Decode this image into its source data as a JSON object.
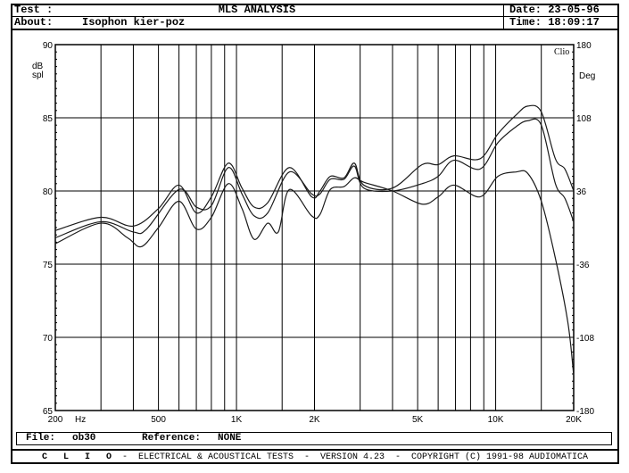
{
  "header": {
    "test_label": "Test :",
    "title": "MLS ANALYSIS",
    "about_label": "About:",
    "about_value": "Isophon kier-poz",
    "date_label": "Date:",
    "date_value": "23-05-96",
    "time_label": "Time:",
    "time_value": "18:09:17"
  },
  "file_bar": {
    "file_label": "File:",
    "file_value": "ob30",
    "reference_label": "Reference:",
    "reference_value": "NONE"
  },
  "footer": {
    "brand": "C L I O",
    "text": " -  ELECTRICAL & ACOUSTICAL TESTS  -  VERSION 4.23  -  COPYRIGHT (C) 1991-98 AUDIOMATICA"
  },
  "chart_data": {
    "type": "line",
    "title": "MLS ANALYSIS",
    "xlabel": "Hz",
    "ylabel": "dB spl",
    "y2label": "Deg",
    "badge": "Clio",
    "xscale": "log",
    "xlim": [
      200,
      20000
    ],
    "ylim": [
      65,
      90
    ],
    "y2lim": [
      -180,
      180
    ],
    "grid": true,
    "x_grid": [
      300,
      400,
      500,
      600,
      700,
      800,
      900,
      1000,
      1500,
      2000,
      3000,
      4000,
      5000,
      6000,
      7000,
      8000,
      9000,
      10000,
      15000
    ],
    "x_ticks": [
      {
        "v": 200,
        "label": "200"
      },
      {
        "v": 500,
        "label": "500"
      },
      {
        "v": 1000,
        "label": "1K"
      },
      {
        "v": 2000,
        "label": "2K"
      },
      {
        "v": 5000,
        "label": "5K"
      },
      {
        "v": 10000,
        "label": "10K"
      },
      {
        "v": 20000,
        "label": "20K"
      }
    ],
    "y_ticks": [
      "90",
      "85",
      "80",
      "75",
      "70",
      "65"
    ],
    "y2_ticks": [
      "180",
      "108",
      "36",
      "-36",
      "-108",
      "-180"
    ],
    "series": [
      {
        "name": "curve-1",
        "points": [
          [
            200,
            77.3
          ],
          [
            300,
            78.2
          ],
          [
            400,
            77.6
          ],
          [
            500,
            78.8
          ],
          [
            600,
            80.4
          ],
          [
            700,
            78.5
          ],
          [
            800,
            79.6
          ],
          [
            930,
            81.9
          ],
          [
            1050,
            80.2
          ],
          [
            1170,
            78.9
          ],
          [
            1320,
            79.2
          ],
          [
            1600,
            81.6
          ],
          [
            1950,
            79.6
          ],
          [
            2100,
            80.0
          ],
          [
            2300,
            81.0
          ],
          [
            2600,
            80.9
          ],
          [
            2850,
            81.9
          ],
          [
            3100,
            80.4
          ],
          [
            4000,
            80.2
          ],
          [
            5200,
            81.8
          ],
          [
            6000,
            81.8
          ],
          [
            6900,
            82.4
          ],
          [
            8700,
            82.2
          ],
          [
            10200,
            83.9
          ],
          [
            12000,
            85.2
          ],
          [
            13300,
            85.8
          ],
          [
            15000,
            85.4
          ],
          [
            17000,
            82.2
          ],
          [
            18500,
            81.5
          ],
          [
            20000,
            80.0
          ]
        ]
      },
      {
        "name": "curve-2",
        "points": [
          [
            200,
            76.8
          ],
          [
            300,
            77.9
          ],
          [
            400,
            77.2
          ],
          [
            450,
            77.4
          ],
          [
            600,
            80.1
          ],
          [
            700,
            78.9
          ],
          [
            800,
            79.0
          ],
          [
            930,
            81.6
          ],
          [
            1050,
            79.8
          ],
          [
            1170,
            78.3
          ],
          [
            1320,
            78.5
          ],
          [
            1600,
            81.3
          ],
          [
            1950,
            79.8
          ],
          [
            2100,
            79.8
          ],
          [
            2300,
            80.8
          ],
          [
            2600,
            80.8
          ],
          [
            2850,
            81.7
          ],
          [
            3100,
            80.2
          ],
          [
            4000,
            80.0
          ],
          [
            5200,
            80.5
          ],
          [
            6000,
            81.0
          ],
          [
            6900,
            82.1
          ],
          [
            8700,
            81.5
          ],
          [
            10200,
            83.3
          ],
          [
            12000,
            84.4
          ],
          [
            13300,
            84.8
          ],
          [
            15000,
            84.5
          ],
          [
            17000,
            80.5
          ],
          [
            18500,
            79.5
          ],
          [
            20000,
            77.9
          ]
        ]
      },
      {
        "name": "curve-3",
        "points": [
          [
            200,
            76.4
          ],
          [
            300,
            77.8
          ],
          [
            380,
            76.8
          ],
          [
            430,
            76.2
          ],
          [
            500,
            77.5
          ],
          [
            600,
            79.3
          ],
          [
            700,
            77.4
          ],
          [
            800,
            78.2
          ],
          [
            930,
            80.5
          ],
          [
            1050,
            78.8
          ],
          [
            1170,
            76.7
          ],
          [
            1320,
            77.8
          ],
          [
            1450,
            77.2
          ],
          [
            1600,
            80.1
          ],
          [
            1950,
            78.3
          ],
          [
            2100,
            78.4
          ],
          [
            2300,
            80.1
          ],
          [
            2600,
            80.3
          ],
          [
            2850,
            80.9
          ],
          [
            3100,
            80.6
          ],
          [
            4000,
            80.0
          ],
          [
            5200,
            79.1
          ],
          [
            6000,
            79.6
          ],
          [
            6900,
            80.4
          ],
          [
            8700,
            79.6
          ],
          [
            10200,
            81.0
          ],
          [
            12000,
            81.3
          ],
          [
            13300,
            81.2
          ],
          [
            15000,
            79.3
          ],
          [
            17000,
            75.4
          ],
          [
            19000,
            71.0
          ],
          [
            20000,
            67.4
          ]
        ]
      }
    ]
  }
}
